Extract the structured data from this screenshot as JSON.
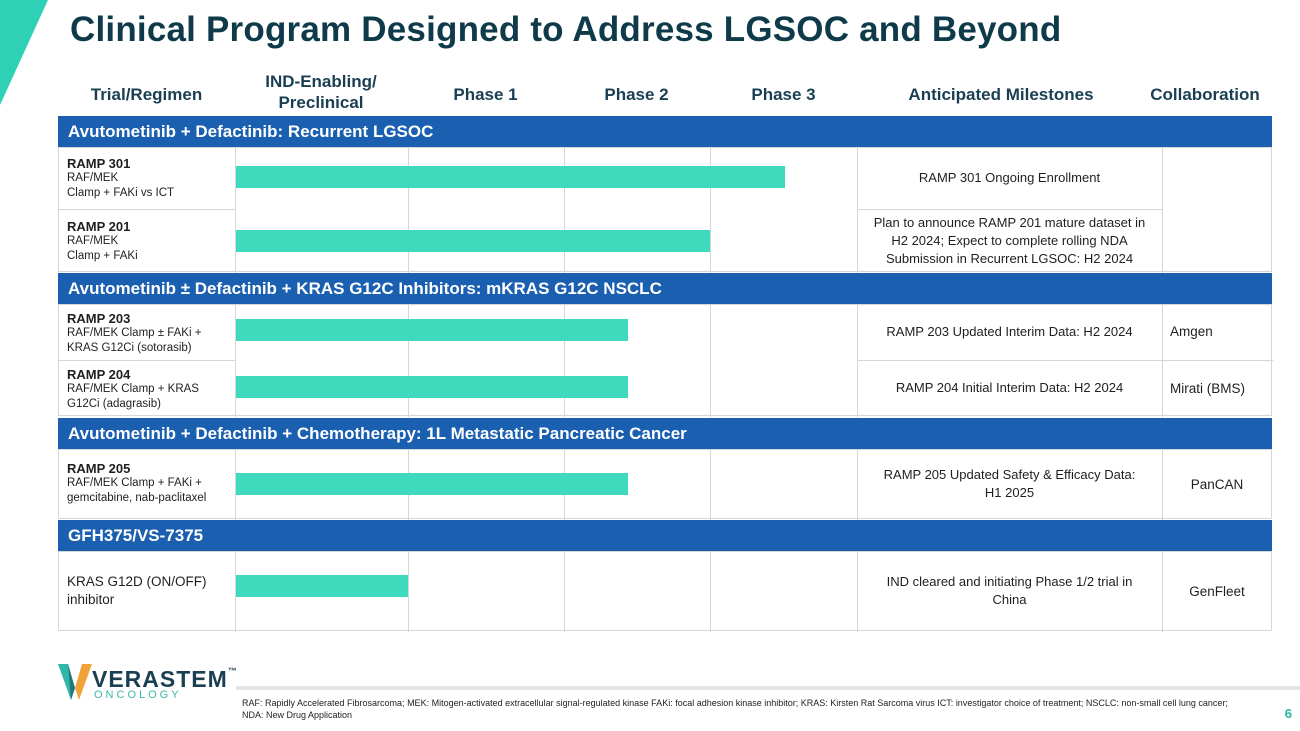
{
  "title": "Clinical Program Designed to Address LGSOC and Beyond",
  "headers": {
    "trial": "Trial/Regimen",
    "ind": "IND-Enabling/ Preclinical",
    "phase1": "Phase 1",
    "phase2": "Phase 2",
    "phase3": "Phase 3",
    "milestones": "Anticipated Milestones",
    "collab": "Collaboration"
  },
  "sections": [
    {
      "title": "Avutometinib + Defactinib: Recurrent LGSOC",
      "rows": [
        {
          "name": "RAMP 301",
          "desc1": "RAF/MEK",
          "desc2": "Clamp + FAKi vs ICT",
          "phase": "Phase 3",
          "milestone": "RAMP 301 Ongoing Enrollment",
          "collab": ""
        },
        {
          "name": "RAMP 201",
          "desc1": "RAF/MEK",
          "desc2": "Clamp + FAKi",
          "phase": "Phase 2",
          "milestone": "Plan to announce RAMP 201 mature dataset in H2 2024; Expect to complete rolling NDA Submission in Recurrent LGSOC: H2 2024",
          "collab": ""
        }
      ]
    },
    {
      "title": "Avutometinib ± Defactinib + KRAS G12C Inhibitors: mKRAS G12C NSCLC",
      "rows": [
        {
          "name": "RAMP 203",
          "desc1": "RAF/MEK Clamp ± FAKi +",
          "desc2": "KRAS G12Ci (sotorasib)",
          "phase": "Phase 2",
          "milestone": "RAMP 203 Updated Interim Data: H2 2024",
          "collab": "Amgen"
        },
        {
          "name": "RAMP 204",
          "desc1": "RAF/MEK Clamp + KRAS",
          "desc2": "G12Ci (adagrasib)",
          "phase": "Phase 2",
          "milestone": "RAMP 204 Initial Interim Data: H2 2024",
          "collab": "Mirati (BMS)"
        }
      ]
    },
    {
      "title": "Avutometinib + Defactinib + Chemotherapy: 1L Metastatic Pancreatic Cancer",
      "rows": [
        {
          "name": "RAMP 205",
          "desc1": "RAF/MEK Clamp + FAKi +",
          "desc2": "gemcitabine, nab-paclitaxel",
          "phase": "Phase 2",
          "milestone": "RAMP 205 Updated Safety & Efficacy Data: H1 2025",
          "collab": "PanCAN"
        }
      ]
    },
    {
      "title": "GFH375/VS-7375",
      "rows": [
        {
          "name": "KRAS G12D (ON/OFF) inhibitor",
          "phase": "IND-Enabling/Preclinical",
          "milestone": "IND cleared and initiating Phase 1/2 trial in China",
          "collab": "GenFleet"
        }
      ]
    }
  ],
  "logo": {
    "name": "VERASTEM",
    "tm": "™",
    "sub": "ONCOLOGY"
  },
  "footnote": "RAF: Rapidly Accelerated Fibrosarcoma;  MEK: Mitogen-activated extracellular signal-regulated kinase  FAKi: focal adhesion kinase inhibitor; KRAS: Kirsten Rat Sarcoma virus ICT: investigator choice of treatment; NSCLC: non-small cell lung cancer; NDA: New Drug Application",
  "page_number": "6",
  "colors": {
    "section_bg": "#1a5fb0",
    "bar": "#3fd9bd",
    "title": "#0e3a4a",
    "accent": "#2ed1b6"
  }
}
